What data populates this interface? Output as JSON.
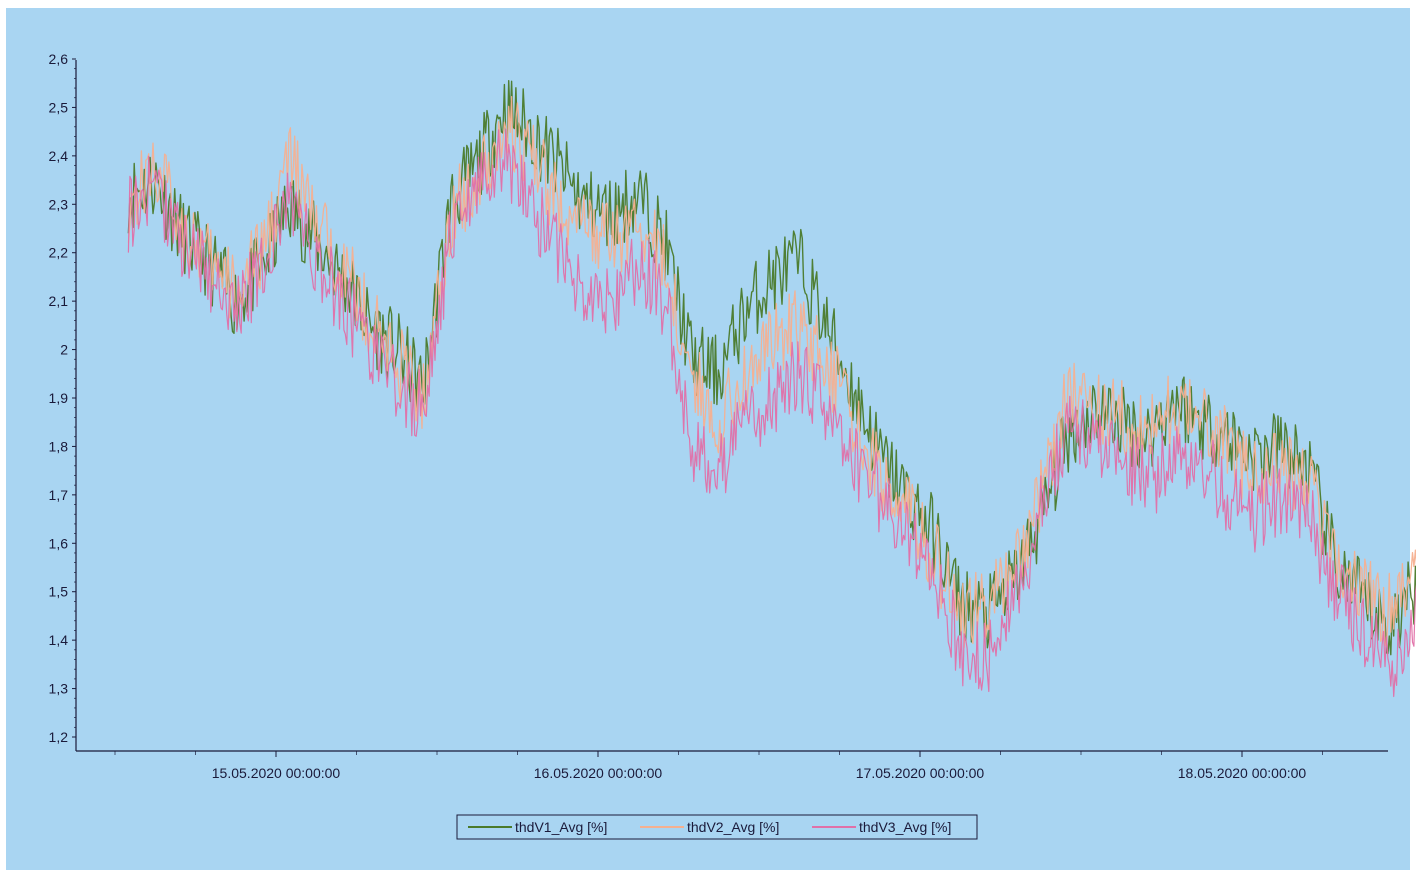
{
  "colors": {
    "background": "#a9d5f2",
    "axis": "#1a1a3a",
    "thdV1": "#4a7a2a",
    "thdV2": "#f5b090",
    "thdV3": "#e070a8"
  },
  "chart_data": {
    "type": "line",
    "title": "",
    "xlabel": "",
    "ylabel": "",
    "xlim": [
      "14.05.2020 13:00:00",
      "18.05.2020 14:00:00"
    ],
    "ylim": [
      1.2,
      2.6
    ],
    "y_ticks": [
      "1,2",
      "1,3",
      "1,4",
      "1,5",
      "1,6",
      "1,7",
      "1,8",
      "1,9",
      "2",
      "2,1",
      "2,2",
      "2,3",
      "2,4",
      "2,5",
      "2,6"
    ],
    "x_ticks": [
      "15.05.2020 00:00:00",
      "16.05.2020 00:00:00",
      "17.05.2020 00:00:00",
      "18.05.2020 00:00:00"
    ],
    "grid": false,
    "legend_position": "bottom-center",
    "x": [
      "14.05.2020 13:00:00",
      "14.05.2020 15:00:00",
      "14.05.2020 17:00:00",
      "14.05.2020 19:00:00",
      "14.05.2020 21:00:00",
      "14.05.2020 23:00:00",
      "15.05.2020 01:00:00",
      "15.05.2020 03:00:00",
      "15.05.2020 05:00:00",
      "15.05.2020 07:00:00",
      "15.05.2020 09:00:00",
      "15.05.2020 11:00:00",
      "15.05.2020 13:00:00",
      "15.05.2020 15:00:00",
      "15.05.2020 17:00:00",
      "15.05.2020 19:00:00",
      "15.05.2020 21:00:00",
      "15.05.2020 23:00:00",
      "16.05.2020 01:00:00",
      "16.05.2020 03:00:00",
      "16.05.2020 05:00:00",
      "16.05.2020 07:00:00",
      "16.05.2020 09:00:00",
      "16.05.2020 11:00:00",
      "16.05.2020 13:00:00",
      "16.05.2020 15:00:00",
      "16.05.2020 17:00:00",
      "16.05.2020 19:00:00",
      "16.05.2020 21:00:00",
      "16.05.2020 23:00:00",
      "17.05.2020 01:00:00",
      "17.05.2020 03:00:00",
      "17.05.2020 05:00:00",
      "17.05.2020 07:00:00",
      "17.05.2020 09:00:00",
      "17.05.2020 11:00:00",
      "17.05.2020 13:00:00",
      "17.05.2020 15:00:00",
      "17.05.2020 17:00:00",
      "17.05.2020 19:00:00",
      "17.05.2020 21:00:00",
      "17.05.2020 23:00:00",
      "18.05.2020 01:00:00",
      "18.05.2020 03:00:00",
      "18.05.2020 05:00:00",
      "18.05.2020 07:00:00",
      "18.05.2020 09:00:00",
      "18.05.2020 11:00:00",
      "18.05.2020 13:00:00",
      "18.05.2020 14:00:00"
    ],
    "series": [
      {
        "name": "thdV1_Avg [%]",
        "color": "#4a7a2a",
        "values": [
          2.32,
          2.35,
          2.24,
          2.18,
          2.1,
          2.17,
          2.3,
          2.22,
          2.15,
          2.05,
          2.0,
          1.92,
          2.3,
          2.38,
          2.5,
          2.45,
          2.38,
          2.3,
          2.28,
          2.32,
          2.22,
          1.98,
          1.95,
          2.08,
          2.15,
          2.18,
          2.05,
          1.92,
          1.78,
          1.7,
          1.62,
          1.48,
          1.45,
          1.52,
          1.65,
          1.82,
          1.88,
          1.85,
          1.82,
          1.9,
          1.85,
          1.82,
          1.78,
          1.8,
          1.75,
          1.55,
          1.48,
          1.42,
          1.52,
          1.62
        ]
      },
      {
        "name": "thdV2_Avg [%]",
        "color": "#f5b090",
        "values": [
          2.3,
          2.38,
          2.26,
          2.18,
          2.12,
          2.2,
          2.4,
          2.25,
          2.18,
          2.06,
          1.98,
          1.9,
          2.28,
          2.35,
          2.46,
          2.4,
          2.3,
          2.25,
          2.22,
          2.26,
          2.18,
          1.94,
          1.85,
          1.95,
          2.02,
          2.05,
          1.98,
          1.85,
          1.74,
          1.68,
          1.58,
          1.45,
          1.48,
          1.55,
          1.7,
          1.92,
          1.88,
          1.86,
          1.82,
          1.88,
          1.85,
          1.8,
          1.74,
          1.76,
          1.72,
          1.56,
          1.5,
          1.46,
          1.56,
          1.66
        ]
      },
      {
        "name": "thdV3_Avg [%]",
        "color": "#e070a8",
        "values": [
          2.28,
          2.34,
          2.22,
          2.16,
          2.08,
          2.16,
          2.32,
          2.18,
          2.1,
          2.0,
          1.92,
          1.88,
          2.22,
          2.34,
          2.4,
          2.3,
          2.2,
          2.12,
          2.1,
          2.18,
          2.1,
          1.8,
          1.75,
          1.85,
          1.9,
          1.95,
          1.88,
          1.78,
          1.7,
          1.62,
          1.55,
          1.38,
          1.36,
          1.48,
          1.66,
          1.85,
          1.8,
          1.78,
          1.72,
          1.78,
          1.76,
          1.7,
          1.66,
          1.7,
          1.66,
          1.5,
          1.42,
          1.34,
          1.48,
          1.58
        ]
      }
    ]
  }
}
